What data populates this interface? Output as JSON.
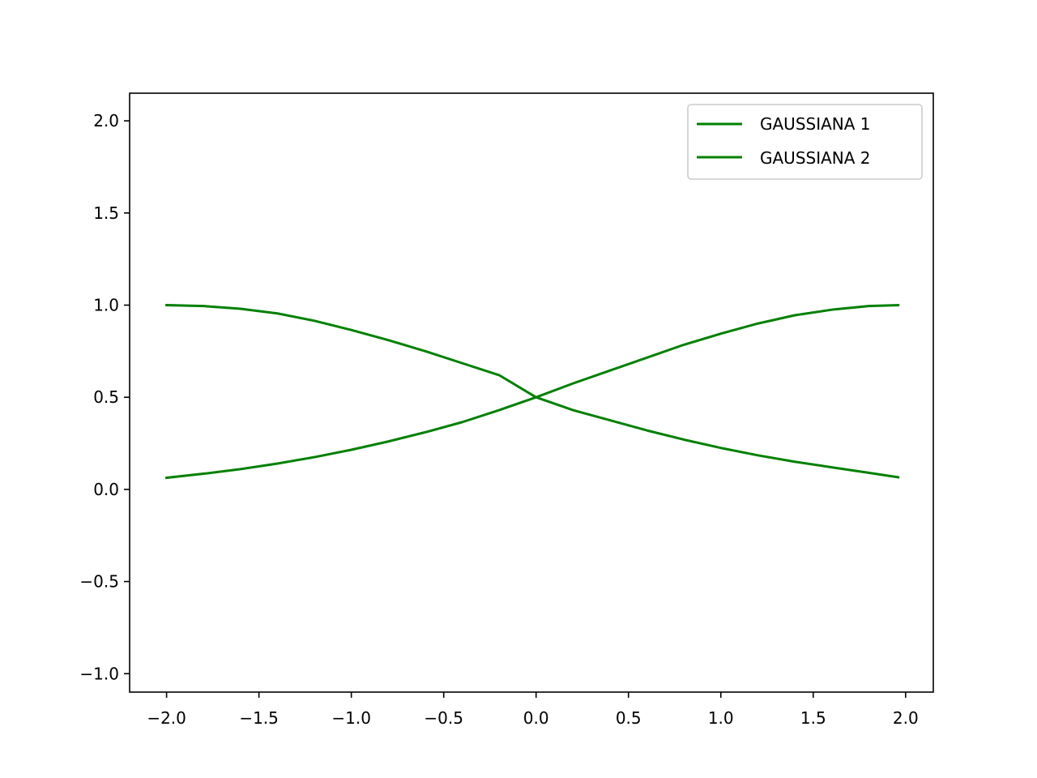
{
  "chart_data": {
    "type": "line",
    "title": "",
    "xlabel": "",
    "ylabel": "",
    "xlim": [
      -2.2,
      2.15
    ],
    "ylim": [
      -1.1,
      2.15
    ],
    "xticks": [
      -2.0,
      -1.5,
      -1.0,
      -0.5,
      0.0,
      0.5,
      1.0,
      1.5,
      2.0
    ],
    "xtick_labels": [
      "−2.0",
      "−1.5",
      "−1.0",
      "−0.5",
      "0.0",
      "0.5",
      "1.0",
      "1.5",
      "2.0"
    ],
    "yticks": [
      -1.0,
      -0.5,
      0.0,
      0.5,
      1.0,
      1.5,
      2.0
    ],
    "ytick_labels": [
      "−1.0",
      "−0.5",
      "0.0",
      "0.5",
      "1.0",
      "1.5",
      "2.0"
    ],
    "grid": false,
    "legend_position": "top-right",
    "x": [
      -2.0,
      -1.8,
      -1.6,
      -1.4,
      -1.2,
      -1.0,
      -0.8,
      -0.6,
      -0.4,
      -0.2,
      0.0,
      0.2,
      0.4,
      0.6,
      0.8,
      1.0,
      1.2,
      1.4,
      1.6,
      1.8,
      1.96
    ],
    "series": [
      {
        "name": "GAUSSIANA 1",
        "color": "#008000",
        "values": [
          1.0,
          0.995,
          0.98,
          0.955,
          0.915,
          0.865,
          0.81,
          0.75,
          0.685,
          0.62,
          0.5,
          0.43,
          0.375,
          0.32,
          0.27,
          0.225,
          0.185,
          0.15,
          0.12,
          0.09,
          0.066
        ]
      },
      {
        "name": "GAUSSIANA 2",
        "color": "#008000",
        "values": [
          0.063,
          0.085,
          0.11,
          0.14,
          0.175,
          0.215,
          0.26,
          0.31,
          0.365,
          0.43,
          0.5,
          0.575,
          0.645,
          0.715,
          0.785,
          0.845,
          0.9,
          0.945,
          0.975,
          0.995,
          1.0
        ]
      }
    ]
  }
}
